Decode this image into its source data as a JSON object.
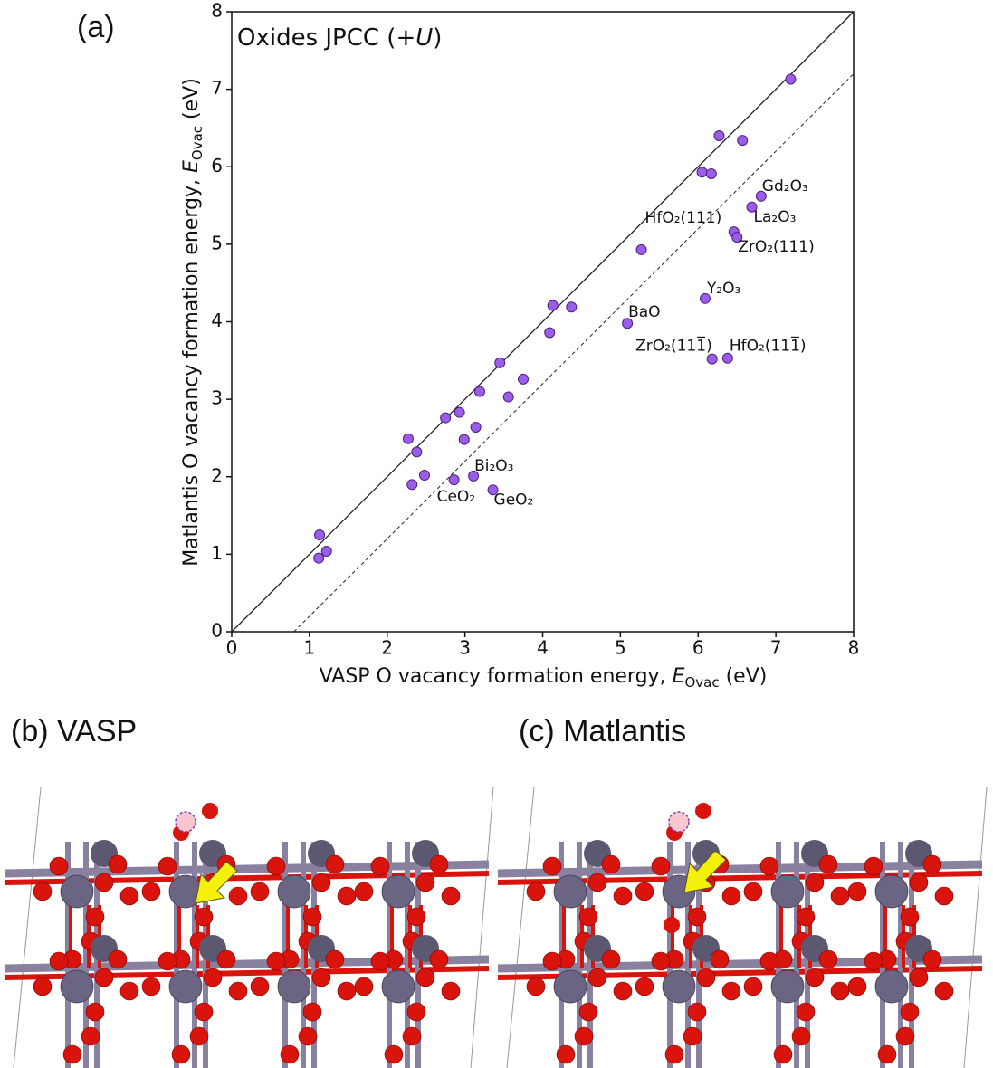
{
  "chart_data": {
    "type": "scatter",
    "panel_label": "(a)",
    "title": {
      "text": "Oxides JPCC (+",
      "italic": "U",
      "end": ")"
    },
    "x_label": {
      "text": "VASP O vacancy formation energy, ",
      "symbol": "E",
      "subscript": "Ovac",
      "unit": " (eV)"
    },
    "y_label": {
      "text": "Matlantis O vacancy formation energy, ",
      "symbol": "E",
      "subscript": "Ovac",
      "unit": " (eV)"
    },
    "xlim": [
      0,
      8
    ],
    "ylim": [
      0,
      8
    ],
    "xticks": [
      0,
      1,
      2,
      3,
      4,
      5,
      6,
      7,
      8
    ],
    "yticks": [
      0,
      1,
      2,
      3,
      4,
      5,
      6,
      7,
      8
    ],
    "color": "#9b5ce8",
    "reference_lines": [
      {
        "slope": 1,
        "intercept": 0,
        "style": "solid"
      },
      {
        "slope": 1,
        "intercept": -0.8,
        "style": "dashed"
      }
    ],
    "x": [
      1.13,
      1.22,
      1.12,
      2.27,
      2.38,
      2.48,
      2.32,
      2.75,
      2.93,
      2.99,
      3.14,
      3.19,
      3.45,
      3.56,
      3.75,
      2.86,
      3.11,
      3.36,
      4.09,
      4.13,
      4.37,
      5.09,
      5.27,
      6.05,
      6.17,
      6.27,
      6.57,
      7.19,
      6.81,
      6.69,
      6.46,
      6.5,
      6.09,
      6.18,
      6.38
    ],
    "y": [
      1.25,
      1.04,
      0.95,
      2.49,
      2.32,
      2.02,
      1.9,
      2.76,
      2.83,
      2.48,
      2.64,
      3.1,
      3.47,
      3.03,
      3.26,
      1.96,
      2.01,
      1.83,
      3.86,
      4.21,
      4.19,
      3.98,
      4.93,
      5.93,
      5.91,
      6.4,
      6.34,
      7.13,
      5.62,
      5.48,
      5.16,
      5.09,
      4.3,
      3.52,
      3.53
    ],
    "labels": [
      null,
      null,
      null,
      null,
      null,
      null,
      null,
      null,
      null,
      null,
      null,
      null,
      null,
      null,
      null,
      "CeO₂",
      "Bi₂O₃",
      "GeO₂",
      null,
      null,
      null,
      "BaO",
      "HfO₂(111)",
      null,
      null,
      null,
      null,
      null,
      "Gd₂O₃",
      "La₂O₃",
      null,
      "ZrO₂(111)",
      "Y₂O₃",
      "ZrO₂(111̅)",
      "HfO₂(111̅)"
    ]
  },
  "panels": [
    {
      "label": "(b) VASP"
    },
    {
      "label": "(c) Matlantis"
    }
  ]
}
